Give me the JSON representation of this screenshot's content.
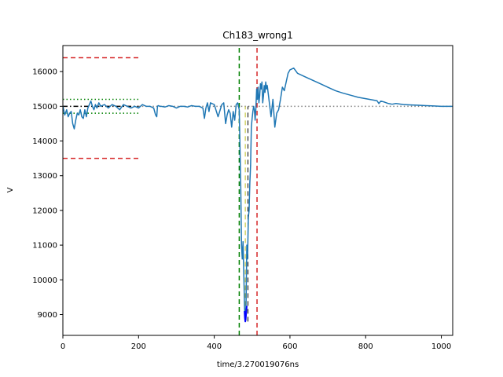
{
  "chart_data": {
    "type": "line",
    "title": "Ch183_wrong1",
    "xlabel": "time/3.270019076ns",
    "ylabel": "V",
    "xlim": [
      0,
      1030
    ],
    "ylim": [
      8400,
      16750
    ],
    "grid": false,
    "xticks": [
      0,
      200,
      400,
      600,
      800,
      1000
    ],
    "yticks": [
      9000,
      10000,
      11000,
      12000,
      13000,
      14000,
      15000,
      16000
    ],
    "colors": {
      "signal": "#1f77b4",
      "peak_highlight": "#0000ff",
      "limits": "#d62728",
      "window": "#008000",
      "baseline_ref": "#000000",
      "baseline": "#808080",
      "marker": "#bcbd22"
    },
    "series": [
      {
        "role": "signal",
        "x": [
          0,
          5,
          10,
          14,
          18,
          22,
          26,
          30,
          34,
          38,
          42,
          46,
          50,
          54,
          58,
          62,
          66,
          70,
          74,
          78,
          82,
          86,
          90,
          95,
          100,
          110,
          120,
          130,
          140,
          150,
          160,
          170,
          180,
          190,
          200,
          210,
          220,
          230,
          240,
          245,
          248,
          250,
          252,
          256,
          260,
          270,
          280,
          290,
          300,
          310,
          320,
          330,
          340,
          350,
          360,
          370,
          374,
          378,
          382,
          386,
          390,
          400,
          410,
          420,
          425,
          430,
          434,
          438,
          442,
          446,
          450,
          454,
          458,
          462,
          466,
          470,
          472,
          474,
          476,
          478,
          480,
          482,
          484,
          486,
          488,
          490,
          492,
          494,
          496,
          498,
          500,
          502,
          504,
          506,
          508,
          510,
          512,
          514,
          516,
          518,
          520,
          522,
          524,
          526,
          528,
          530,
          532,
          534,
          536,
          538,
          540,
          545,
          550,
          555,
          560,
          565,
          570,
          575,
          580,
          585,
          590,
          595,
          600,
          610,
          620,
          640,
          660,
          680,
          700,
          720,
          740,
          760,
          780,
          800,
          820,
          830,
          835,
          840,
          850,
          860,
          870,
          880,
          900,
          920,
          940,
          960,
          980,
          1000,
          1020,
          1030
        ],
        "y": [
          15000,
          14750,
          14900,
          14700,
          14800,
          14850,
          14500,
          14350,
          14600,
          14800,
          14750,
          14900,
          14700,
          14650,
          14900,
          14700,
          14950,
          15050,
          15150,
          15000,
          14900,
          15050,
          14950,
          15100,
          15000,
          15050,
          14950,
          15050,
          15000,
          14900,
          15050,
          15000,
          14950,
          15000,
          14950,
          15050,
          15000,
          15000,
          14950,
          14750,
          14700,
          15000,
          15020,
          15000,
          15000,
          14980,
          15020,
          15000,
          14950,
          15000,
          15000,
          14980,
          15020,
          15000,
          15000,
          14950,
          14650,
          14950,
          15100,
          14850,
          15100,
          15050,
          14700,
          15050,
          15100,
          14500,
          14750,
          14900,
          14800,
          14400,
          14850,
          14600,
          15050,
          15100,
          14900,
          12700,
          11000,
          10600,
          11100,
          10200,
          9200,
          8800,
          9300,
          11000,
          10600,
          11800,
          12000,
          12800,
          13300,
          14400,
          14650,
          14850,
          15000,
          14900,
          14600,
          14950,
          15500,
          15200,
          15550,
          15100,
          15300,
          15650,
          15500,
          15700,
          15100,
          15300,
          15600,
          15400,
          15700,
          15500,
          15600,
          15150,
          14700,
          15200,
          14400,
          14800,
          14900,
          15200,
          15550,
          15450,
          15700,
          15950,
          16050,
          16100,
          15950,
          15850,
          15750,
          15650,
          15550,
          15450,
          15380,
          15320,
          15260,
          15220,
          15180,
          15160,
          15080,
          15150,
          15120,
          15080,
          15060,
          15080,
          15050,
          15040,
          15030,
          15020,
          15010,
          15000,
          15000,
          15000
        ]
      },
      {
        "role": "peak_highlight",
        "x": [
          480,
          481,
          482,
          483,
          484,
          485,
          486
        ],
        "y": [
          9100,
          8900,
          8800,
          8850,
          9000,
          9150,
          9250
        ]
      }
    ],
    "reference_lines": [
      {
        "role": "limit_upper",
        "orientation": "horizontal",
        "y": 16400,
        "x": [
          0,
          200
        ],
        "color": "#d62728",
        "style": "dashed"
      },
      {
        "role": "limit_lower",
        "orientation": "horizontal",
        "y": 13500,
        "x": [
          0,
          200
        ],
        "color": "#d62728",
        "style": "dashed"
      },
      {
        "role": "window_upper",
        "orientation": "horizontal",
        "y": 15200,
        "x": [
          0,
          200
        ],
        "color": "#008000",
        "style": "dotted"
      },
      {
        "role": "window_lower",
        "orientation": "horizontal",
        "y": 14800,
        "x": [
          0,
          200
        ],
        "color": "#008000",
        "style": "dotted"
      },
      {
        "role": "baseline_ref",
        "orientation": "horizontal",
        "y": 15000,
        "x": [
          0,
          200
        ],
        "color": "#000000",
        "style": "dashdot"
      },
      {
        "role": "baseline",
        "orientation": "horizontal",
        "y": 15000,
        "x": [
          200,
          1030
        ],
        "color": "#808080",
        "style": "dotted"
      },
      {
        "role": "start_marker",
        "orientation": "vertical",
        "x": 466,
        "color": "#008000",
        "style": "dashed"
      },
      {
        "role": "end_marker",
        "orientation": "vertical",
        "x": 513,
        "color": "#d62728",
        "style": "dashed"
      },
      {
        "role": "peak_marker",
        "orientation": "vertical",
        "x": 482,
        "y": [
          8800,
          15000
        ],
        "color": "#bcbd22",
        "style": "dashed"
      },
      {
        "role": "peak_marker_2",
        "orientation": "vertical",
        "x": 489,
        "y": [
          8800,
          15000
        ],
        "color": "#000000",
        "style": "dashed"
      }
    ]
  }
}
